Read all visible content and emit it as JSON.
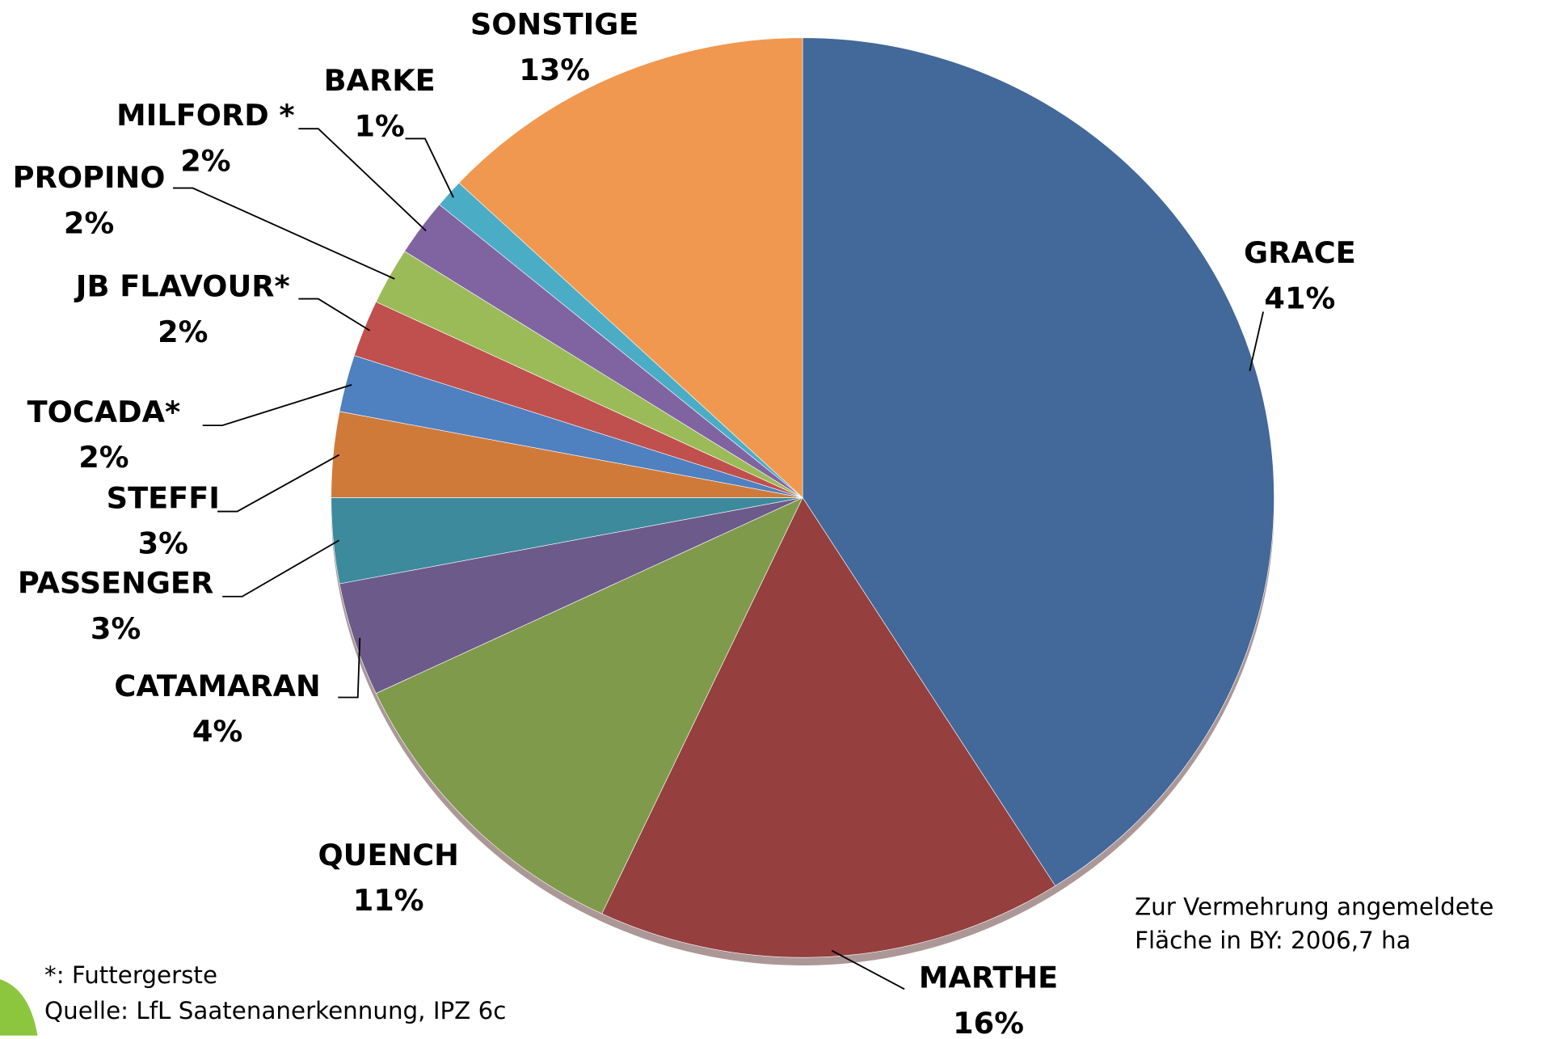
{
  "chart_data": {
    "type": "pie",
    "categories": [
      "GRACE",
      "MARTHE",
      "QUENCH",
      "CATAMARAN",
      "PASSENGER",
      "STEFFI",
      "TOCADA*",
      "JB FLAVOUR*",
      "PROPINO",
      "MILFORD *",
      "BARKE",
      "SONSTIGE"
    ],
    "values": [
      41,
      16,
      11,
      4,
      3,
      3,
      2,
      2,
      2,
      2,
      1,
      13
    ],
    "value_labels": [
      "41%",
      "16%",
      "11%",
      "4%",
      "3%",
      "3%",
      "2%",
      "2%",
      "2%",
      "2%",
      "1%",
      "13%"
    ],
    "colors": [
      "#43689a",
      "#953f3e",
      "#7f9a4b",
      "#6c5a8a",
      "#3d8a9c",
      "#d07a3a",
      "#4f80c0",
      "#c0504d",
      "#9bbb59",
      "#8064a2",
      "#4bacc6",
      "#f0984f"
    ],
    "annotation": [
      "Zur Vermehrung angemeldete",
      "Fläche in BY: 2006,7 ha"
    ],
    "footnotes": [
      "*: Futtergerste",
      "Quelle: LfL Saatenanerkennung, IPZ 6c"
    ]
  }
}
